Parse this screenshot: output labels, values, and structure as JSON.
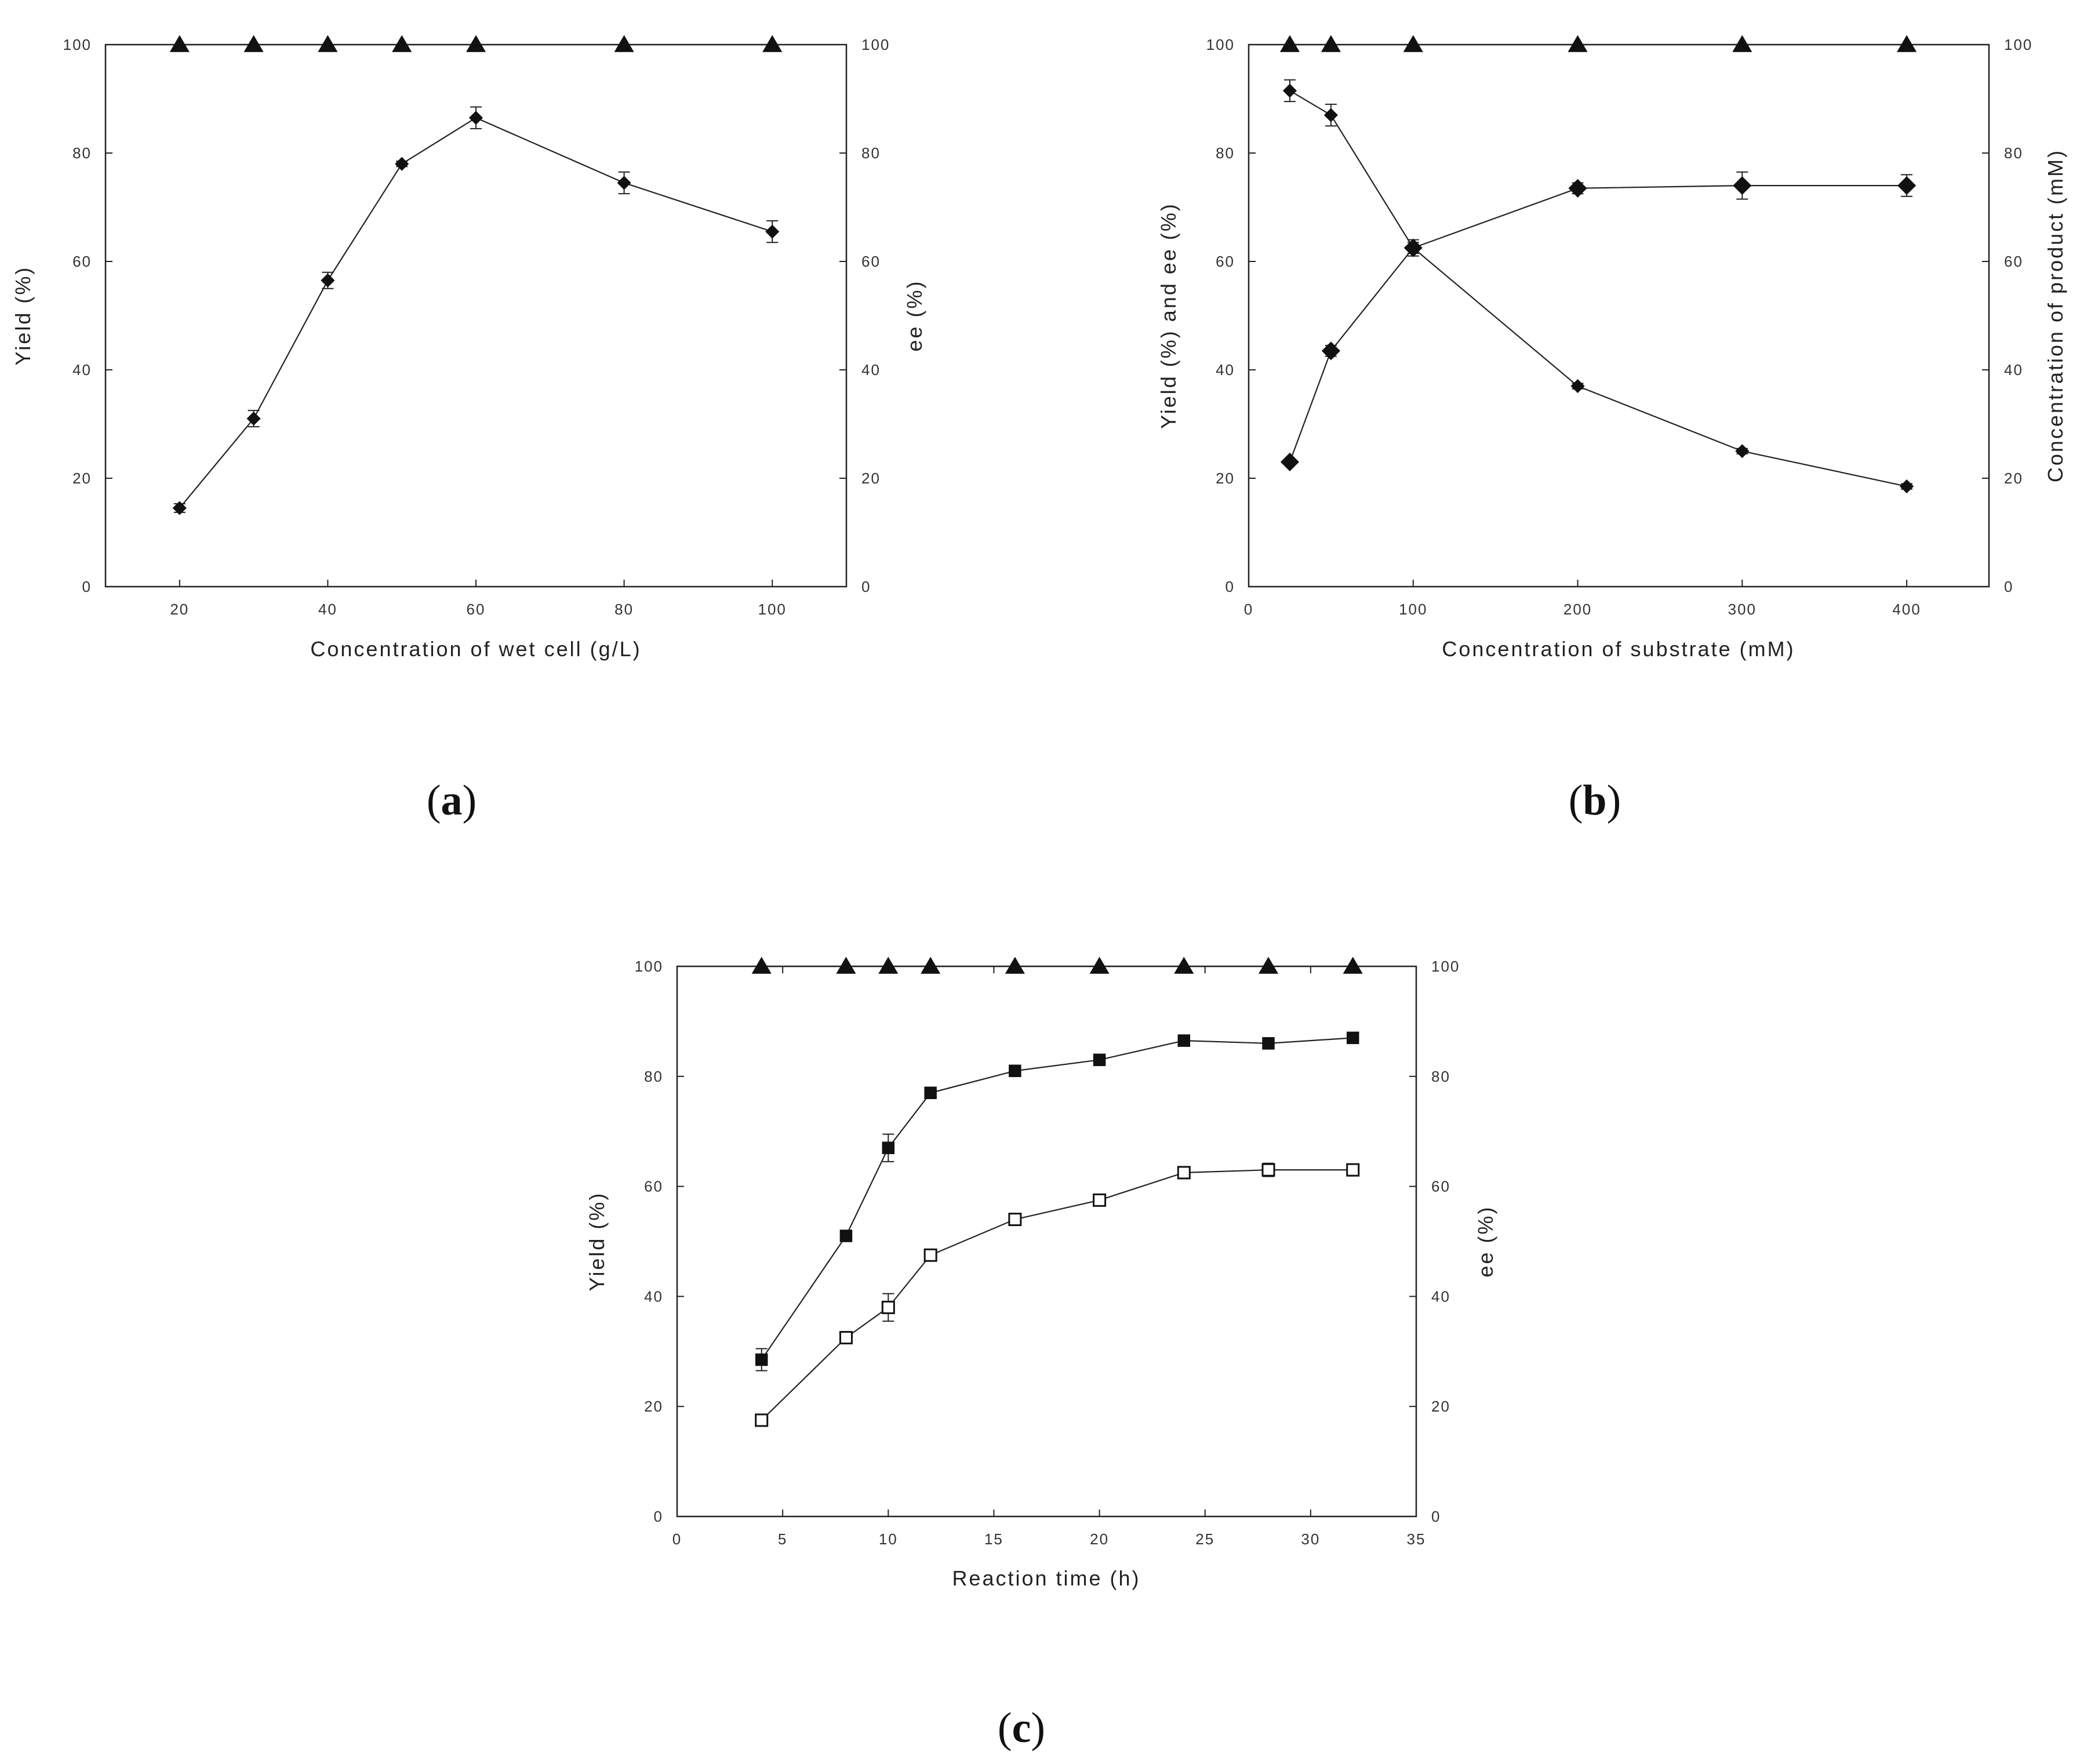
{
  "chart_data": [
    {
      "panel": "(a)",
      "panel_letter": "a",
      "type": "line",
      "xlabel": "Concentration of wet cell (g/L)",
      "ylabel": "Yield (%)",
      "y2label": "ee (%)",
      "xlim": [
        10,
        110
      ],
      "ylim": [
        0,
        100
      ],
      "y2lim": [
        0,
        100
      ],
      "xticks": [
        20,
        40,
        60,
        80,
        100
      ],
      "yticks": [
        0,
        20,
        40,
        60,
        80,
        100
      ],
      "y2ticks": [
        0,
        20,
        40,
        60,
        80,
        100
      ],
      "series": [
        {
          "marker": "diamond-filled",
          "axis": "left",
          "x": [
            20,
            30,
            40,
            50,
            60,
            80,
            100
          ],
          "y": [
            14.5,
            31,
            56.5,
            78,
            86.5,
            74.5,
            65.5
          ],
          "error": [
            0.8,
            1.5,
            1.5,
            0.5,
            2.0,
            2.0,
            2.0
          ]
        },
        {
          "marker": "triangle-filled",
          "axis": "right",
          "x": [
            20,
            30,
            40,
            50,
            60,
            80,
            100
          ],
          "y": [
            100,
            100,
            100,
            100,
            100,
            100,
            100
          ],
          "error": [
            0,
            0,
            0,
            0,
            0,
            0,
            0
          ]
        }
      ]
    },
    {
      "panel": "(b)",
      "panel_letter": "b",
      "type": "line",
      "xlabel": "Concentration of substrate (mM)",
      "ylabel": "Yield (%) and ee (%)",
      "y2label": "Concentration of product (mM)",
      "xlim": [
        0,
        450
      ],
      "ylim": [
        0,
        100
      ],
      "y2lim": [
        0,
        100
      ],
      "xticks": [
        0,
        100,
        200,
        300,
        400
      ],
      "yticks": [
        0,
        20,
        40,
        60,
        80,
        100
      ],
      "y2ticks": [
        0,
        20,
        40,
        60,
        80,
        100
      ],
      "series": [
        {
          "marker": "diamond-filled",
          "axis": "left",
          "x": [
            25,
            50,
            100,
            200,
            300,
            400
          ],
          "y": [
            91.5,
            87,
            62.5,
            37,
            25,
            18.5
          ],
          "error": [
            2.0,
            2.0,
            1.0,
            0.5,
            0.5,
            0.5
          ]
        },
        {
          "marker": "diamond-filled-large",
          "axis": "right",
          "x": [
            25,
            50,
            100,
            200,
            300,
            400
          ],
          "y": [
            23,
            43.5,
            62.5,
            73.5,
            74,
            74
          ],
          "error": [
            0.5,
            1.0,
            1.5,
            1.0,
            2.5,
            2.0
          ]
        },
        {
          "marker": "triangle-filled",
          "axis": "left",
          "x": [
            25,
            50,
            100,
            200,
            300,
            400
          ],
          "y": [
            100,
            100,
            100,
            100,
            100,
            100
          ],
          "error": [
            0,
            0,
            0,
            0,
            0,
            0
          ]
        }
      ]
    },
    {
      "panel": "(c)",
      "panel_letter": "c",
      "type": "line",
      "xlabel": "Reaction time (h)",
      "ylabel": "Yield (%)",
      "y2label": "ee (%)",
      "xlim": [
        0,
        35
      ],
      "ylim": [
        0,
        100
      ],
      "y2lim": [
        0,
        100
      ],
      "xticks": [
        0,
        5,
        10,
        15,
        20,
        25,
        30,
        35
      ],
      "yticks": [
        0,
        20,
        40,
        60,
        80,
        100
      ],
      "y2ticks": [
        0,
        20,
        40,
        60,
        80,
        100
      ],
      "series": [
        {
          "marker": "square-filled",
          "axis": "left",
          "x": [
            4,
            8,
            10,
            12,
            16,
            20,
            24,
            28,
            32
          ],
          "y": [
            28.5,
            51,
            67,
            77,
            81,
            83,
            86.5,
            86,
            87
          ],
          "error": [
            2.0,
            0.8,
            2.5,
            1.0,
            0.8,
            0.8,
            0.8,
            0.8,
            0.8
          ]
        },
        {
          "marker": "square-open",
          "axis": "left",
          "x": [
            4,
            8,
            10,
            12,
            16,
            20,
            24,
            28,
            32
          ],
          "y": [
            17.5,
            32.5,
            38,
            47.5,
            54,
            57.5,
            62.5,
            63,
            63
          ],
          "error": [
            0.5,
            1.0,
            2.5,
            0.8,
            0.8,
            0.8,
            0.8,
            1.2,
            0.8
          ]
        },
        {
          "marker": "triangle-filled",
          "axis": "right",
          "x": [
            4,
            8,
            10,
            12,
            16,
            20,
            24,
            28,
            32
          ],
          "y": [
            100,
            100,
            100,
            100,
            100,
            100,
            100,
            100,
            100
          ],
          "error": [
            0,
            0,
            0,
            0,
            0,
            0,
            0,
            0,
            0
          ]
        }
      ]
    }
  ]
}
